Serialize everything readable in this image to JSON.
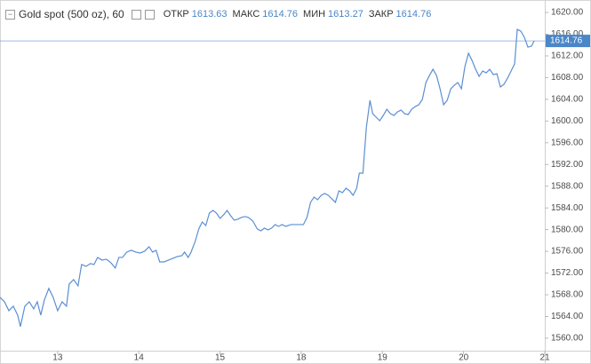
{
  "chart_data": {
    "type": "line",
    "header": {
      "title": "Gold spot (500 oz), 60",
      "ohlc": [
        {
          "label": "ОТКР",
          "value": 1613.63
        },
        {
          "label": "МАКС",
          "value": 1614.76
        },
        {
          "label": "МИН",
          "value": 1613.27
        },
        {
          "label": "ЗАКР",
          "value": 1614.76
        }
      ]
    },
    "last_price": 1614.76,
    "color": "#5b8fd4",
    "grid": false,
    "xlim": [
      0.29,
      7
    ],
    "xticks": [
      {
        "value": 1,
        "label": "13"
      },
      {
        "value": 2,
        "label": "14"
      },
      {
        "value": 3,
        "label": "15"
      },
      {
        "value": 4,
        "label": "18"
      },
      {
        "value": 5,
        "label": "19"
      },
      {
        "value": 6,
        "label": "20"
      },
      {
        "value": 7,
        "label": "21"
      }
    ],
    "ylim": [
      1557.7,
      1622.3
    ],
    "yticks": [
      {
        "value": 1560,
        "label": "1560.00"
      },
      {
        "value": 1564,
        "label": "1564.00"
      },
      {
        "value": 1568,
        "label": "1568.00"
      },
      {
        "value": 1572,
        "label": "1572.00"
      },
      {
        "value": 1576,
        "label": "1576.00"
      },
      {
        "value": 1580,
        "label": "1580.00"
      },
      {
        "value": 1584,
        "label": "1584.00"
      },
      {
        "value": 1588,
        "label": "1588.00"
      },
      {
        "value": 1592,
        "label": "1592.00"
      },
      {
        "value": 1596,
        "label": "1596.00"
      },
      {
        "value": 1600,
        "label": "1600.00"
      },
      {
        "value": 1604,
        "label": "1604.00"
      },
      {
        "value": 1608,
        "label": "1608.00"
      },
      {
        "value": 1612,
        "label": "1612.00"
      },
      {
        "value": 1616,
        "label": "1616.00"
      },
      {
        "value": 1620,
        "label": "1620.00"
      }
    ],
    "x": [
      0.29,
      0.345,
      0.399,
      0.454,
      0.508,
      0.541,
      0.596,
      0.65,
      0.705,
      0.749,
      0.792,
      0.836,
      0.891,
      0.945,
      1.0,
      1.055,
      1.109,
      1.142,
      1.197,
      1.251,
      1.295,
      1.35,
      1.404,
      1.448,
      1.492,
      1.546,
      1.601,
      1.656,
      1.71,
      1.754,
      1.798,
      1.852,
      1.907,
      1.962,
      2.016,
      2.071,
      2.126,
      2.169,
      2.213,
      2.257,
      2.311,
      2.366,
      2.421,
      2.475,
      2.53,
      2.563,
      2.607,
      2.639,
      2.694,
      2.738,
      2.781,
      2.825,
      2.869,
      2.913,
      2.956,
      3.0,
      3.044,
      3.087,
      3.131,
      3.175,
      3.219,
      3.262,
      3.306,
      3.35,
      3.404,
      3.459,
      3.503,
      3.546,
      3.59,
      3.634,
      3.678,
      3.721,
      3.765,
      3.809,
      3.874,
      3.951,
      4.027,
      4.071,
      4.115,
      4.158,
      4.202,
      4.246,
      4.29,
      4.333,
      4.377,
      4.421,
      4.464,
      4.508,
      4.552,
      4.596,
      4.639,
      4.683,
      4.716,
      4.76,
      4.803,
      4.847,
      4.88,
      4.923,
      4.967,
      5.011,
      5.055,
      5.098,
      5.142,
      5.186,
      5.23,
      5.273,
      5.317,
      5.361,
      5.404,
      5.448,
      5.492,
      5.536,
      5.579,
      5.623,
      5.667,
      5.71,
      5.754,
      5.798,
      5.842,
      5.885,
      5.929,
      5.973,
      6.016,
      6.06,
      6.104,
      6.148,
      6.191,
      6.235,
      6.279,
      6.322,
      6.366,
      6.41,
      6.454,
      6.497,
      6.541,
      6.585,
      6.628,
      6.661,
      6.705,
      6.749,
      6.792,
      6.836,
      6.869
    ],
    "values": [
      1567.52,
      1566.71,
      1565.07,
      1565.89,
      1564.25,
      1562.13,
      1565.89,
      1566.71,
      1565.4,
      1566.71,
      1564.25,
      1567.03,
      1569.16,
      1567.52,
      1565.07,
      1566.71,
      1565.89,
      1569.98,
      1570.79,
      1569.65,
      1573.57,
      1573.24,
      1573.74,
      1573.57,
      1574.88,
      1574.39,
      1574.55,
      1573.9,
      1572.92,
      1574.88,
      1574.88,
      1575.86,
      1576.19,
      1575.86,
      1575.7,
      1576.02,
      1576.84,
      1575.86,
      1576.19,
      1574.06,
      1574.06,
      1574.39,
      1574.72,
      1575.04,
      1575.21,
      1575.86,
      1574.88,
      1575.7,
      1577.82,
      1580.11,
      1581.42,
      1580.76,
      1583.05,
      1583.54,
      1583.05,
      1582.07,
      1582.73,
      1583.54,
      1582.56,
      1581.75,
      1581.91,
      1582.24,
      1582.4,
      1582.24,
      1581.58,
      1580.11,
      1579.78,
      1580.27,
      1579.95,
      1580.27,
      1580.93,
      1580.6,
      1580.93,
      1580.6,
      1580.93,
      1580.93,
      1580.93,
      1582.24,
      1585.02,
      1586.0,
      1585.51,
      1586.32,
      1586.65,
      1586.32,
      1585.67,
      1585.02,
      1587.14,
      1586.81,
      1587.63,
      1587.14,
      1586.32,
      1587.63,
      1590.41,
      1590.41,
      1598.91,
      1603.82,
      1601.36,
      1600.71,
      1600.06,
      1601.04,
      1602.18,
      1601.36,
      1601.04,
      1601.69,
      1602.02,
      1601.36,
      1601.2,
      1602.18,
      1602.67,
      1603.0,
      1603.98,
      1607.09,
      1608.39,
      1609.54,
      1608.39,
      1605.94,
      1603.0,
      1603.82,
      1605.94,
      1606.59,
      1607.09,
      1605.94,
      1610.03,
      1612.48,
      1611.17,
      1609.54,
      1608.23,
      1609.21,
      1608.88,
      1609.54,
      1608.56,
      1608.72,
      1606.27,
      1606.76,
      1607.9,
      1609.21,
      1610.52,
      1616.89,
      1616.57,
      1615.42,
      1613.62,
      1613.79,
      1614.76
    ]
  }
}
